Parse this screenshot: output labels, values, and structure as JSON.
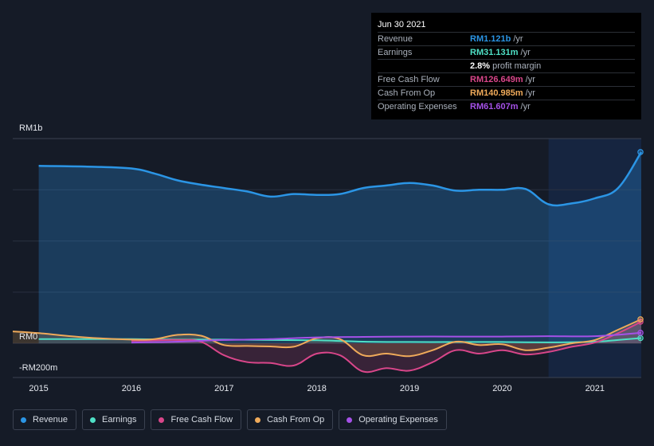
{
  "tooltip": {
    "date": "Jun 30 2021",
    "rows": [
      {
        "label": "Revenue",
        "value": "RM1.121b",
        "unit": "/yr",
        "color": "#2b95e5"
      },
      {
        "label": "Earnings",
        "value": "RM31.131m",
        "unit": "/yr",
        "color": "#4fe0c6"
      },
      {
        "label": "",
        "value": "2.8%",
        "unit": "profit margin",
        "color": "#ffffff"
      },
      {
        "label": "Free Cash Flow",
        "value": "RM126.649m",
        "unit": "/yr",
        "color": "#d9468a"
      },
      {
        "label": "Cash From Op",
        "value": "RM140.985m",
        "unit": "/yr",
        "color": "#efaa5a"
      },
      {
        "label": "Operating Expenses",
        "value": "RM61.607m",
        "unit": "/yr",
        "color": "#a551e8"
      }
    ]
  },
  "legend": [
    {
      "label": "Revenue",
      "color": "#2b95e5"
    },
    {
      "label": "Earnings",
      "color": "#4fe0c6"
    },
    {
      "label": "Free Cash Flow",
      "color": "#d9468a"
    },
    {
      "label": "Cash From Op",
      "color": "#efaa5a"
    },
    {
      "label": "Operating Expenses",
      "color": "#a551e8"
    }
  ],
  "chart_data": {
    "type": "line",
    "y_axis_labels": [
      "RM1b",
      "RM0",
      "-RM200m"
    ],
    "y_axis_label_values": [
      1200,
      0,
      -200
    ],
    "x_tick_labels": [
      "2015",
      "2016",
      "2017",
      "2018",
      "2019",
      "2020",
      "2021"
    ],
    "x_tick_values": [
      2015,
      2016,
      2017,
      2018,
      2019,
      2020,
      2021
    ],
    "xlim": [
      2014.72,
      2021.5
    ],
    "ylim": [
      -200,
      1200
    ],
    "grid": true,
    "highlight_region": [
      2020.5,
      2021.5
    ],
    "series": [
      {
        "name": "Revenue",
        "color": "#2b95e5",
        "area": true,
        "points": [
          [
            2015.0,
            1040
          ],
          [
            2015.5,
            1036
          ],
          [
            2016.0,
            1025
          ],
          [
            2016.25,
            995
          ],
          [
            2016.5,
            955
          ],
          [
            2016.75,
            930
          ],
          [
            2017.0,
            910
          ],
          [
            2017.25,
            890
          ],
          [
            2017.5,
            860
          ],
          [
            2017.75,
            875
          ],
          [
            2018.0,
            870
          ],
          [
            2018.25,
            875
          ],
          [
            2018.5,
            910
          ],
          [
            2018.75,
            925
          ],
          [
            2019.0,
            940
          ],
          [
            2019.25,
            925
          ],
          [
            2019.5,
            895
          ],
          [
            2019.75,
            900
          ],
          [
            2020.0,
            900
          ],
          [
            2020.25,
            905
          ],
          [
            2020.5,
            815
          ],
          [
            2020.75,
            820
          ],
          [
            2021.0,
            850
          ],
          [
            2021.25,
            910
          ],
          [
            2021.5,
            1121
          ]
        ]
      },
      {
        "name": "Earnings",
        "color": "#4fe0c6",
        "area": false,
        "points": [
          [
            2015.0,
            25
          ],
          [
            2015.5,
            25
          ],
          [
            2016.0,
            25
          ],
          [
            2016.5,
            22
          ],
          [
            2017.0,
            22
          ],
          [
            2017.5,
            20
          ],
          [
            2018.0,
            18
          ],
          [
            2018.5,
            10
          ],
          [
            2019.0,
            8
          ],
          [
            2019.5,
            8
          ],
          [
            2020.0,
            8
          ],
          [
            2020.5,
            6
          ],
          [
            2021.0,
            10
          ],
          [
            2021.25,
            20
          ],
          [
            2021.5,
            31
          ]
        ]
      },
      {
        "name": "Free Cash Flow",
        "color": "#d9468a",
        "area": true,
        "points": [
          [
            2016.0,
            15
          ],
          [
            2016.25,
            18
          ],
          [
            2016.5,
            20
          ],
          [
            2016.75,
            10
          ],
          [
            2017.0,
            -70
          ],
          [
            2017.25,
            -110
          ],
          [
            2017.5,
            -115
          ],
          [
            2017.75,
            -130
          ],
          [
            2018.0,
            -60
          ],
          [
            2018.25,
            -70
          ],
          [
            2018.5,
            -165
          ],
          [
            2018.75,
            -145
          ],
          [
            2019.0,
            -160
          ],
          [
            2019.25,
            -110
          ],
          [
            2019.5,
            -40
          ],
          [
            2019.75,
            -60
          ],
          [
            2020.0,
            -40
          ],
          [
            2020.25,
            -65
          ],
          [
            2020.5,
            -50
          ],
          [
            2020.75,
            -20
          ],
          [
            2021.0,
            5
          ],
          [
            2021.25,
            60
          ],
          [
            2021.5,
            127
          ]
        ]
      },
      {
        "name": "Cash From Op",
        "color": "#efaa5a",
        "area": true,
        "points": [
          [
            2014.72,
            70
          ],
          [
            2015.0,
            60
          ],
          [
            2015.5,
            35
          ],
          [
            2016.0,
            22
          ],
          [
            2016.25,
            25
          ],
          [
            2016.5,
            50
          ],
          [
            2016.75,
            45
          ],
          [
            2017.0,
            -10
          ],
          [
            2017.25,
            -15
          ],
          [
            2017.5,
            -18
          ],
          [
            2017.75,
            -20
          ],
          [
            2018.0,
            30
          ],
          [
            2018.25,
            25
          ],
          [
            2018.5,
            -70
          ],
          [
            2018.75,
            -60
          ],
          [
            2019.0,
            -75
          ],
          [
            2019.25,
            -40
          ],
          [
            2019.5,
            10
          ],
          [
            2019.75,
            -10
          ],
          [
            2020.0,
            -5
          ],
          [
            2020.25,
            -40
          ],
          [
            2020.5,
            -25
          ],
          [
            2020.75,
            0
          ],
          [
            2021.0,
            20
          ],
          [
            2021.25,
            80
          ],
          [
            2021.5,
            141
          ]
        ]
      },
      {
        "name": "Operating Expenses",
        "color": "#a551e8",
        "area": false,
        "points": [
          [
            2016.0,
            5
          ],
          [
            2016.5,
            10
          ],
          [
            2017.0,
            20
          ],
          [
            2017.5,
            25
          ],
          [
            2018.0,
            35
          ],
          [
            2018.5,
            38
          ],
          [
            2019.0,
            40
          ],
          [
            2019.5,
            40
          ],
          [
            2020.0,
            40
          ],
          [
            2020.5,
            42
          ],
          [
            2021.0,
            42
          ],
          [
            2021.5,
            62
          ]
        ]
      }
    ]
  }
}
